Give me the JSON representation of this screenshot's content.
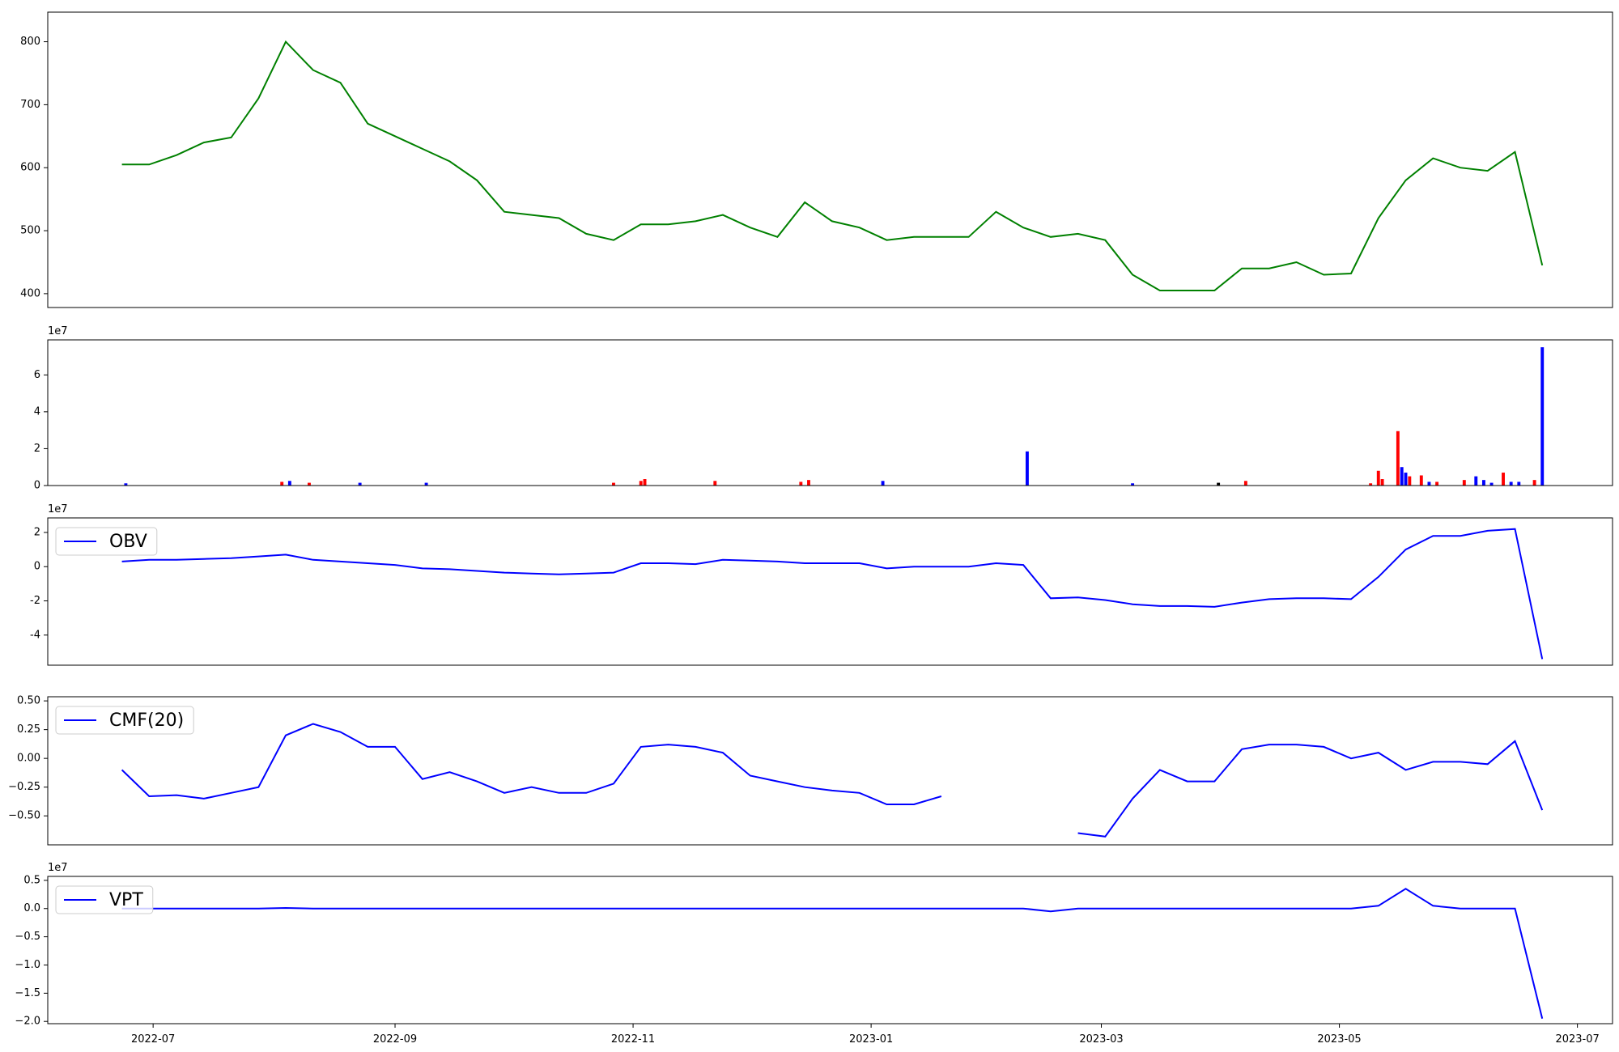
{
  "chart_data": [
    {
      "type": "line",
      "xlim": [
        "2022-06-04",
        "2023-07-10"
      ],
      "ylim": [
        378,
        847
      ],
      "yticks": [
        400,
        500,
        600,
        700,
        800
      ],
      "x": [
        "2022-06-23",
        "2022-06-30",
        "2022-07-07",
        "2022-07-14",
        "2022-07-21",
        "2022-07-28",
        "2022-08-04",
        "2022-08-11",
        "2022-08-18",
        "2022-08-25",
        "2022-09-01",
        "2022-09-08",
        "2022-09-15",
        "2022-09-22",
        "2022-09-29",
        "2022-10-06",
        "2022-10-13",
        "2022-10-20",
        "2022-10-27",
        "2022-11-03",
        "2022-11-10",
        "2022-11-17",
        "2022-11-24",
        "2022-12-01",
        "2022-12-08",
        "2022-12-15",
        "2022-12-22",
        "2022-12-29",
        "2023-01-05",
        "2023-01-12",
        "2023-01-19",
        "2023-01-26",
        "2023-02-02",
        "2023-02-09",
        "2023-02-16",
        "2023-02-23",
        "2023-03-02",
        "2023-03-09",
        "2023-03-16",
        "2023-03-23",
        "2023-03-30",
        "2023-04-06",
        "2023-04-13",
        "2023-04-20",
        "2023-04-27",
        "2023-05-04",
        "2023-05-11",
        "2023-05-18",
        "2023-05-25",
        "2023-06-01",
        "2023-06-08",
        "2023-06-15",
        "2023-06-22"
      ],
      "series": [
        {
          "color": "#008000",
          "values": [
            605,
            605,
            620,
            640,
            648,
            710,
            800,
            755,
            735,
            670,
            650,
            630,
            610,
            580,
            530,
            525,
            520,
            495,
            485,
            510,
            510,
            515,
            525,
            505,
            490,
            545,
            515,
            505,
            485,
            490,
            490,
            490,
            530,
            505,
            490,
            495,
            485,
            430,
            405,
            405,
            405,
            440,
            440,
            450,
            430,
            432,
            520,
            580,
            615,
            600,
            595,
            625,
            445
          ]
        }
      ]
    },
    {
      "type": "bar",
      "offset_label": "1e7",
      "xlim": [
        "2022-06-04",
        "2023-07-10"
      ],
      "ylim": [
        0,
        7.9
      ],
      "yticks": [
        0,
        2,
        4,
        6
      ],
      "x": [
        "2022-06-24",
        "2022-08-03",
        "2022-08-05",
        "2022-08-10",
        "2022-08-23",
        "2022-09-09",
        "2022-10-27",
        "2022-11-03",
        "2022-11-04",
        "2022-11-22",
        "2022-12-14",
        "2022-12-16",
        "2023-01-04",
        "2023-02-10",
        "2023-03-09",
        "2023-03-31",
        "2023-04-07",
        "2023-05-09",
        "2023-05-11",
        "2023-05-12",
        "2023-05-16",
        "2023-05-17",
        "2023-05-18",
        "2023-05-19",
        "2023-05-22",
        "2023-05-24",
        "2023-05-26",
        "2023-06-02",
        "2023-06-05",
        "2023-06-07",
        "2023-06-09",
        "2023-06-12",
        "2023-06-14",
        "2023-06-16",
        "2023-06-20",
        "2023-06-22"
      ],
      "values": [
        0.12,
        0.2,
        0.25,
        0.15,
        0.15,
        0.15,
        0.15,
        0.25,
        0.35,
        0.25,
        0.2,
        0.3,
        0.25,
        1.85,
        0.12,
        0.15,
        0.25,
        0.12,
        0.8,
        0.35,
        2.95,
        1.0,
        0.7,
        0.5,
        0.55,
        0.2,
        0.2,
        0.3,
        0.5,
        0.3,
        0.15,
        0.7,
        0.2,
        0.2,
        0.3,
        7.5
      ],
      "colors": [
        "#0000ff",
        "#ff0000",
        "#0000ff",
        "#ff0000",
        "#0000ff",
        "#0000ff",
        "#ff0000",
        "#ff0000",
        "#ff0000",
        "#ff0000",
        "#ff0000",
        "#ff0000",
        "#0000ff",
        "#0000ff",
        "#0000ff",
        "#000000",
        "#ff0000",
        "#ff0000",
        "#ff0000",
        "#ff0000",
        "#ff0000",
        "#0000ff",
        "#0000ff",
        "#ff0000",
        "#ff0000",
        "#0000ff",
        "#ff0000",
        "#ff0000",
        "#0000ff",
        "#0000ff",
        "#0000ff",
        "#ff0000",
        "#0000ff",
        "#0000ff",
        "#ff0000",
        "#0000ff"
      ]
    },
    {
      "type": "line",
      "offset_label": "1e7",
      "legend": "upper left",
      "xlim": [
        "2022-06-04",
        "2023-07-10"
      ],
      "ylim": [
        -5.76,
        2.85
      ],
      "yticks": [
        -4,
        -2,
        0,
        2
      ],
      "x": [
        "2022-06-23",
        "2022-06-30",
        "2022-07-07",
        "2022-07-14",
        "2022-07-21",
        "2022-07-28",
        "2022-08-04",
        "2022-08-11",
        "2022-08-18",
        "2022-08-25",
        "2022-09-01",
        "2022-09-08",
        "2022-09-15",
        "2022-09-22",
        "2022-09-29",
        "2022-10-06",
        "2022-10-13",
        "2022-10-20",
        "2022-10-27",
        "2022-11-03",
        "2022-11-10",
        "2022-11-17",
        "2022-11-24",
        "2022-12-01",
        "2022-12-08",
        "2022-12-15",
        "2022-12-22",
        "2022-12-29",
        "2023-01-05",
        "2023-01-12",
        "2023-01-19",
        "2023-01-26",
        "2023-02-02",
        "2023-02-09",
        "2023-02-16",
        "2023-02-23",
        "2023-03-02",
        "2023-03-09",
        "2023-03-16",
        "2023-03-23",
        "2023-03-30",
        "2023-04-06",
        "2023-04-13",
        "2023-04-20",
        "2023-04-27",
        "2023-05-04",
        "2023-05-11",
        "2023-05-18",
        "2023-05-25",
        "2023-06-01",
        "2023-06-08",
        "2023-06-15",
        "2023-06-22"
      ],
      "series": [
        {
          "name": "OBV",
          "color": "#0000ff",
          "values": [
            0.3,
            0.4,
            0.4,
            0.45,
            0.5,
            0.6,
            0.7,
            0.4,
            0.3,
            0.2,
            0.1,
            -0.1,
            -0.15,
            -0.25,
            -0.35,
            -0.4,
            -0.45,
            -0.4,
            -0.35,
            0.2,
            0.2,
            0.15,
            0.4,
            0.35,
            0.3,
            0.2,
            0.2,
            0.2,
            -0.1,
            0,
            0,
            0,
            0.2,
            0.1,
            -1.85,
            -1.8,
            -1.95,
            -2.2,
            -2.3,
            -2.3,
            -2.35,
            -2.1,
            -1.9,
            -1.85,
            -1.85,
            -1.9,
            -0.6,
            1.0,
            1.8,
            1.8,
            2.1,
            2.2,
            -5.4
          ]
        }
      ]
    },
    {
      "type": "line",
      "legend": "upper left",
      "xlim": [
        "2022-06-04",
        "2023-07-10"
      ],
      "ylim": [
        -0.752,
        0.536
      ],
      "yticks": [
        {
          "value": -0.5,
          "label": "−0.50"
        },
        {
          "value": -0.25,
          "label": "−0.25"
        },
        {
          "value": 0,
          "label": "0.00"
        },
        {
          "value": 0.25,
          "label": "0.25"
        },
        {
          "value": 0.5,
          "label": "0.50"
        }
      ],
      "x": [
        "2022-06-23",
        "2022-06-30",
        "2022-07-07",
        "2022-07-14",
        "2022-07-21",
        "2022-07-28",
        "2022-08-04",
        "2022-08-11",
        "2022-08-18",
        "2022-08-25",
        "2022-09-01",
        "2022-09-08",
        "2022-09-15",
        "2022-09-22",
        "2022-09-29",
        "2022-10-06",
        "2022-10-13",
        "2022-10-20",
        "2022-10-27",
        "2022-11-03",
        "2022-11-10",
        "2022-11-17",
        "2022-11-24",
        "2022-12-01",
        "2022-12-08",
        "2022-12-15",
        "2022-12-22",
        "2022-12-29",
        "2023-01-05",
        "2023-01-12",
        "2023-01-19",
        "2023-01-26",
        "2023-02-02",
        "2023-02-09",
        "2023-02-16",
        "2023-02-23",
        "2023-03-02",
        "2023-03-09",
        "2023-03-16",
        "2023-03-23",
        "2023-03-30",
        "2023-04-06",
        "2023-04-13",
        "2023-04-20",
        "2023-04-27",
        "2023-05-04",
        "2023-05-11",
        "2023-05-18",
        "2023-05-25",
        "2023-06-01",
        "2023-06-08",
        "2023-06-15",
        "2023-06-22"
      ],
      "series": [
        {
          "name": "CMF(20)",
          "color": "#0000ff",
          "values": [
            -0.1,
            -0.33,
            -0.32,
            -0.35,
            -0.3,
            -0.25,
            0.2,
            0.3,
            0.23,
            0.1,
            0.1,
            -0.18,
            -0.12,
            -0.2,
            -0.3,
            -0.25,
            -0.3,
            -0.3,
            -0.22,
            0.1,
            0.12,
            0.1,
            0.05,
            -0.15,
            -0.2,
            -0.25,
            -0.28,
            -0.3,
            -0.4,
            -0.4,
            -0.33,
            null,
            null,
            null,
            null,
            -0.65,
            -0.68,
            -0.35,
            -0.1,
            -0.2,
            -0.2,
            0.08,
            0.12,
            0.12,
            0.1,
            0,
            0.05,
            -0.1,
            -0.03,
            -0.03,
            -0.05,
            0.15,
            -0.45
          ]
        }
      ]
    },
    {
      "type": "line",
      "offset_label": "1e7",
      "legend": "upper left",
      "xlim": [
        "2022-06-04",
        "2023-07-10"
      ],
      "ylim": [
        -2.04,
        0.57
      ],
      "yticks": [
        {
          "value": -2,
          "label": "−2.0"
        },
        {
          "value": -1.5,
          "label": "−1.5"
        },
        {
          "value": -1,
          "label": "−1.0"
        },
        {
          "value": -0.5,
          "label": "−0.5"
        },
        {
          "value": 0,
          "label": "0.0"
        },
        {
          "value": 0.5,
          "label": "0.5"
        }
      ],
      "xticks": [
        "2022-07",
        "2022-09",
        "2022-11",
        "2023-01",
        "2023-03",
        "2023-05",
        "2023-07"
      ],
      "x": [
        "2022-06-23",
        "2022-06-30",
        "2022-07-07",
        "2022-07-14",
        "2022-07-21",
        "2022-07-28",
        "2022-08-04",
        "2022-08-11",
        "2022-08-18",
        "2022-08-25",
        "2022-09-01",
        "2022-09-08",
        "2022-09-15",
        "2022-09-22",
        "2022-09-29",
        "2022-10-06",
        "2022-10-13",
        "2022-10-20",
        "2022-10-27",
        "2022-11-03",
        "2022-11-10",
        "2022-11-17",
        "2022-11-24",
        "2022-12-01",
        "2022-12-08",
        "2022-12-15",
        "2022-12-22",
        "2022-12-29",
        "2023-01-05",
        "2023-01-12",
        "2023-01-19",
        "2023-01-26",
        "2023-02-02",
        "2023-02-09",
        "2023-02-16",
        "2023-02-23",
        "2023-03-02",
        "2023-03-09",
        "2023-03-16",
        "2023-03-23",
        "2023-03-30",
        "2023-04-06",
        "2023-04-13",
        "2023-04-20",
        "2023-04-27",
        "2023-05-04",
        "2023-05-11",
        "2023-05-18",
        "2023-05-25",
        "2023-06-01",
        "2023-06-08",
        "2023-06-15",
        "2023-06-22"
      ],
      "series": [
        {
          "name": "VPT",
          "color": "#0000ff",
          "values": [
            0,
            0,
            0,
            0,
            0,
            0,
            0.01,
            0,
            0,
            0,
            0,
            0,
            0,
            0,
            0,
            0,
            0,
            0,
            0,
            0,
            0,
            0,
            0,
            0,
            0,
            0,
            0,
            0,
            0,
            0,
            0,
            0,
            0,
            0,
            -0.05,
            0,
            0,
            0,
            0,
            0,
            0,
            0,
            0,
            0,
            0,
            0,
            0.05,
            0.35,
            0.05,
            0,
            0,
            0,
            -1.95
          ]
        }
      ]
    }
  ]
}
